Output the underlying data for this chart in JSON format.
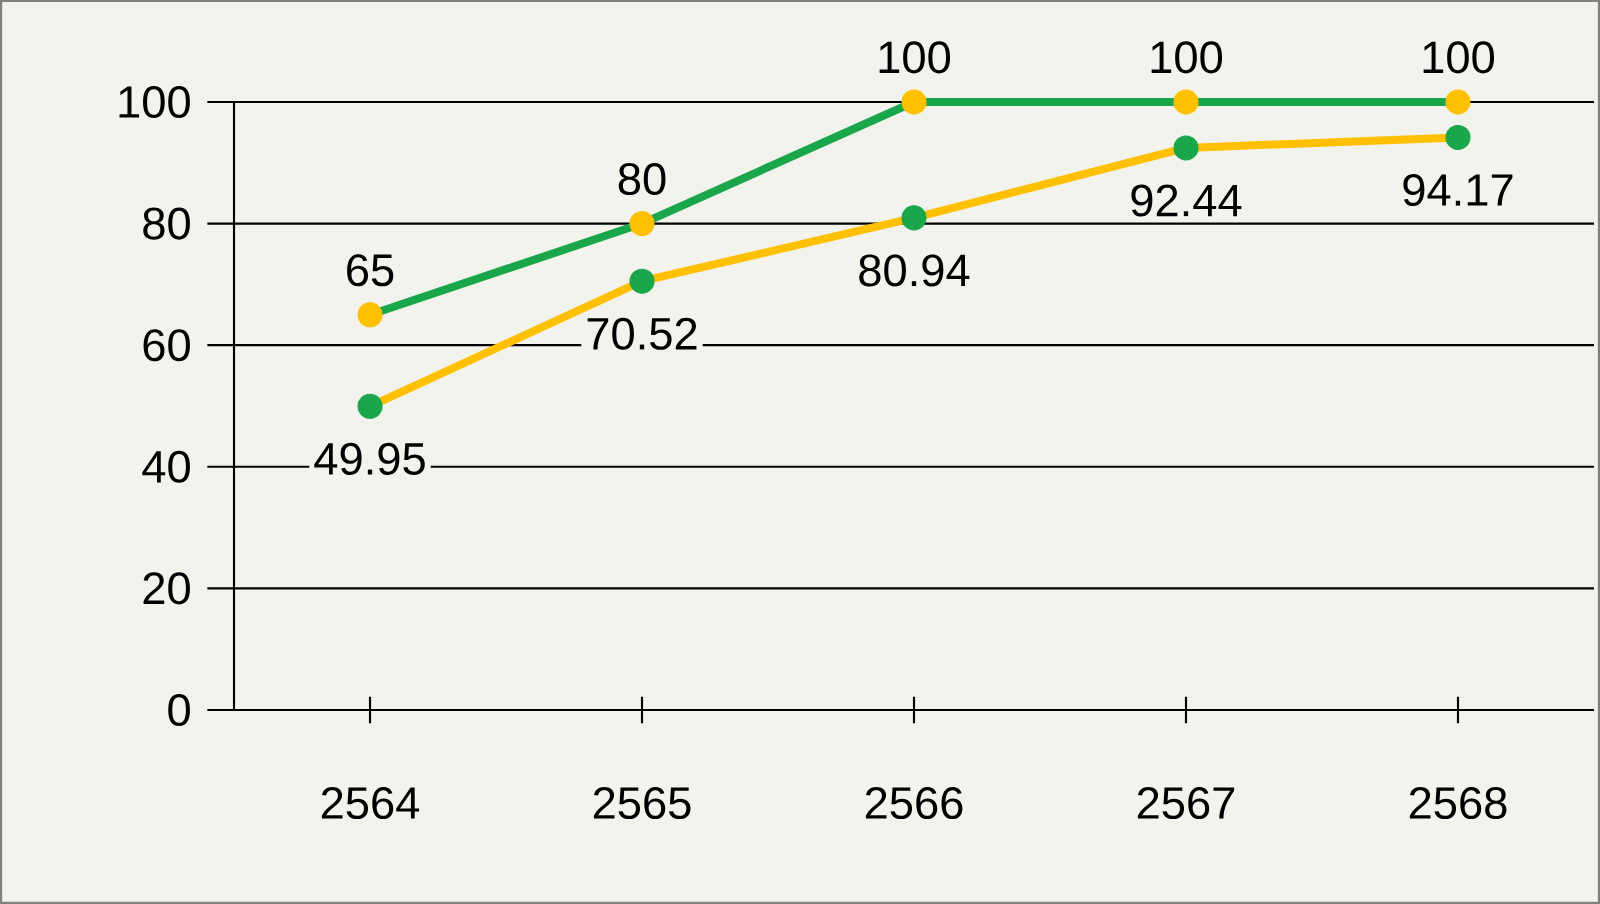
{
  "chart_data": {
    "type": "line",
    "categories": [
      "2564",
      "2565",
      "2566",
      "2567",
      "2568"
    ],
    "series": [
      {
        "color": "#1aa64a",
        "colors": [
          "#ffc000",
          "#ffc000",
          "#ffc000",
          "#ffc000",
          "#ffc000"
        ],
        "values": [
          65,
          80,
          100,
          100,
          100
        ]
      },
      {
        "color": "#ffc000",
        "colors": [
          "#1aa64a",
          "#1aa64a",
          "#1aa64a",
          "#1aa64a",
          "#1aa64a"
        ],
        "values": [
          49.95,
          70.52,
          80.94,
          92.44,
          94.17
        ]
      }
    ],
    "ylim": [
      0,
      100
    ],
    "yticks": [
      0,
      20,
      40,
      60,
      80,
      100
    ],
    "grid": "y",
    "marker": "circle",
    "line_style": "solid",
    "data_labels": true
  }
}
